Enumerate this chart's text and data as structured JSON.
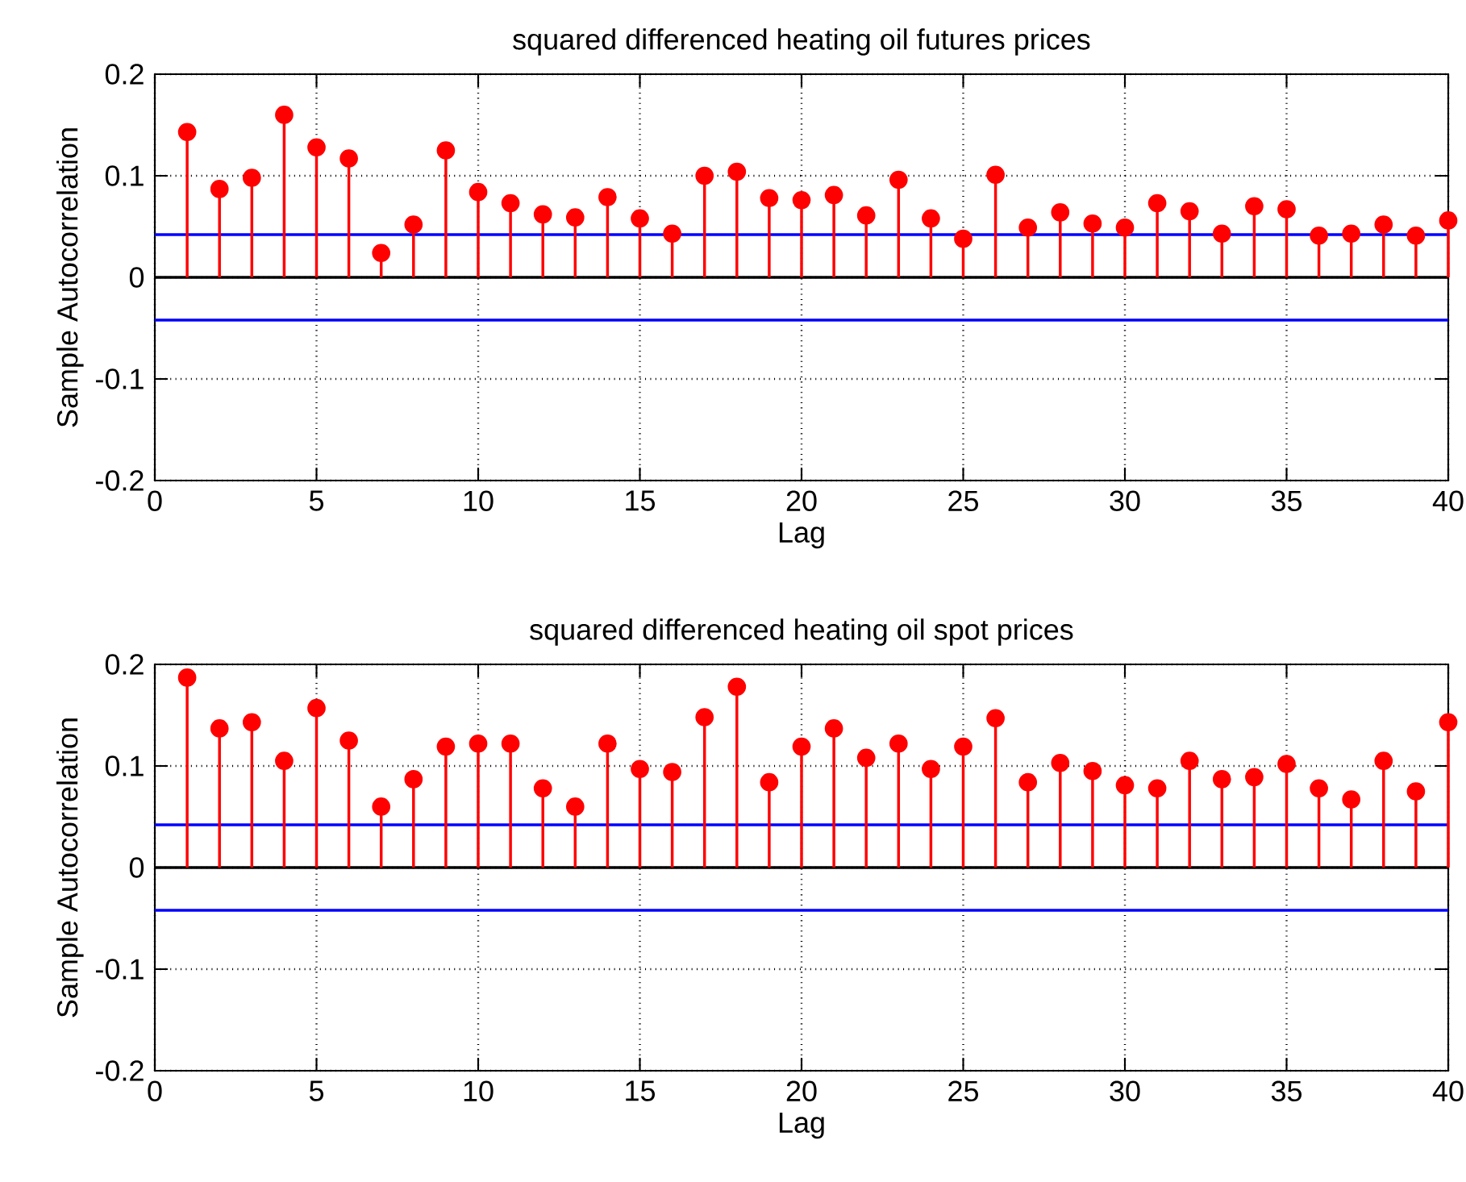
{
  "chart_data": [
    {
      "type": "lollipop",
      "title": "squared differenced heating oil futures prices",
      "xlabel": "Lag",
      "ylabel": "Sample Autocorrelation",
      "x": [
        1,
        2,
        3,
        4,
        5,
        6,
        7,
        8,
        9,
        10,
        11,
        12,
        13,
        14,
        15,
        16,
        17,
        18,
        19,
        20,
        21,
        22,
        23,
        24,
        25,
        26,
        27,
        28,
        29,
        30,
        31,
        32,
        33,
        34,
        35,
        36,
        37,
        38,
        39,
        40
      ],
      "values": [
        0.143,
        0.087,
        0.098,
        0.16,
        0.128,
        0.117,
        0.024,
        0.052,
        0.125,
        0.084,
        0.073,
        0.062,
        0.059,
        0.079,
        0.058,
        0.043,
        0.1,
        0.104,
        0.078,
        0.076,
        0.081,
        0.061,
        0.096,
        0.058,
        0.038,
        0.101,
        0.049,
        0.064,
        0.053,
        0.049,
        0.073,
        0.065,
        0.043,
        0.07,
        0.067,
        0.041,
        0.043,
        0.052,
        0.041,
        0.056
      ],
      "color": "#ff0000",
      "marker": "circle",
      "grid": true,
      "xlim": [
        0,
        40
      ],
      "ylim": [
        -0.2,
        0.2
      ],
      "xticks": [
        0,
        5,
        10,
        15,
        20,
        25,
        30,
        35,
        40
      ],
      "yticks": [
        -0.2,
        -0.1,
        0,
        0.1,
        0.2
      ],
      "ref_lines": [
        {
          "axis": "y",
          "value": 0,
          "color": "#000000"
        },
        {
          "axis": "y",
          "value": 0.042,
          "color": "#0000ff"
        },
        {
          "axis": "y",
          "value": -0.042,
          "color": "#0000ff"
        }
      ]
    },
    {
      "type": "lollipop",
      "title": "squared differenced heating oil spot prices",
      "xlabel": "Lag",
      "ylabel": "Sample Autocorrelation",
      "x": [
        1,
        2,
        3,
        4,
        5,
        6,
        7,
        8,
        9,
        10,
        11,
        12,
        13,
        14,
        15,
        16,
        17,
        18,
        19,
        20,
        21,
        22,
        23,
        24,
        25,
        26,
        27,
        28,
        29,
        30,
        31,
        32,
        33,
        34,
        35,
        36,
        37,
        38,
        39,
        40
      ],
      "values": [
        0.187,
        0.137,
        0.143,
        0.105,
        0.157,
        0.125,
        0.06,
        0.087,
        0.119,
        0.122,
        0.122,
        0.078,
        0.06,
        0.122,
        0.097,
        0.094,
        0.148,
        0.178,
        0.084,
        0.119,
        0.137,
        0.108,
        0.122,
        0.097,
        0.119,
        0.147,
        0.084,
        0.103,
        0.095,
        0.081,
        0.078,
        0.105,
        0.087,
        0.089,
        0.102,
        0.078,
        0.067,
        0.105,
        0.075,
        0.143
      ],
      "color": "#ff0000",
      "marker": "circle",
      "grid": true,
      "xlim": [
        0,
        40
      ],
      "ylim": [
        -0.2,
        0.2
      ],
      "xticks": [
        0,
        5,
        10,
        15,
        20,
        25,
        30,
        35,
        40
      ],
      "yticks": [
        -0.2,
        -0.1,
        0,
        0.1,
        0.2
      ],
      "ref_lines": [
        {
          "axis": "y",
          "value": 0,
          "color": "#000000"
        },
        {
          "axis": "y",
          "value": 0.042,
          "color": "#0000ff"
        },
        {
          "axis": "y",
          "value": -0.042,
          "color": "#0000ff"
        }
      ]
    }
  ]
}
